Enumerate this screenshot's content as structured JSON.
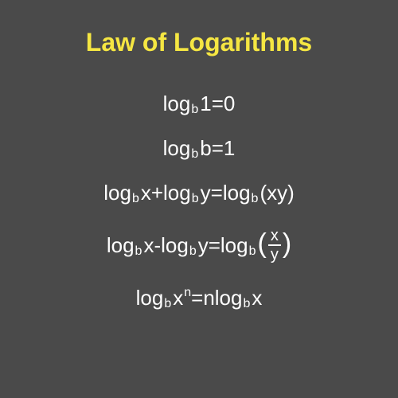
{
  "title": "Law of Logarithms",
  "colors": {
    "background": "#4a4a4a",
    "title": "#f5e642",
    "text": "#ffffff"
  },
  "typography": {
    "title_fontsize": 32,
    "formula_fontsize": 26,
    "subscript_fontsize": 16
  },
  "log_label": "log",
  "subscript": "b",
  "formulas": [
    {
      "type": "identity",
      "arg": "1",
      "equals": " = ",
      "result": "0"
    },
    {
      "type": "identity",
      "arg": "b",
      "equals": " = ",
      "result": "1"
    },
    {
      "type": "product",
      "arg1": "x",
      "op": " + ",
      "arg2": "y",
      "equals": " = ",
      "result_arg": "(xy)"
    },
    {
      "type": "quotient",
      "arg1": "x",
      "op": " - ",
      "arg2": "y",
      "equals": " = ",
      "frac_top": "x",
      "frac_bot": "y",
      "paren_l": "(",
      "paren_r": ")"
    },
    {
      "type": "power",
      "arg": "x",
      "exp": "n",
      "equals": " = ",
      "coef": "n",
      "result_arg": "x"
    }
  ]
}
